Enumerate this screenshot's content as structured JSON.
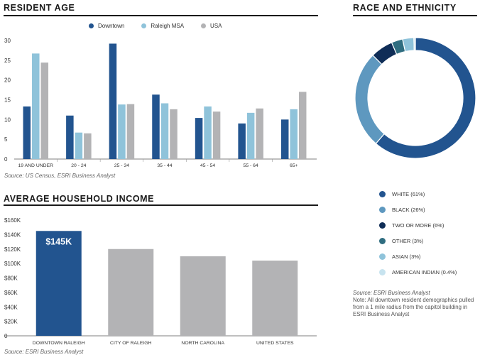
{
  "sections": {
    "resident_age_title": "RESIDENT AGE",
    "race_title": "RACE AND ETHNICITY",
    "income_title": "AVERAGE HOUSEHOLD INCOME"
  },
  "sources": {
    "age": "Source: US Census, ESRI Business Analyst",
    "income": "Source: ESRI Business Analyst",
    "race": "Source: ESRI Business Analyst",
    "race_note": "Note: All downtown resident demographics pulled from a 1 mile radius from the capitol building in ESRI Business Analyst"
  },
  "colors": {
    "downtown": "#22548f",
    "raleigh_msa": "#8fc3da",
    "usa": "#b3b3b5",
    "income_highlight": "#22548f",
    "income_other": "#b3b3b5"
  },
  "chart_data": [
    {
      "type": "bar",
      "title": "RESIDENT AGE",
      "categories": [
        "19 AND UNDER",
        "20 - 24",
        "25 - 34",
        "35 - 44",
        "45 - 54",
        "55 - 64",
        "65+"
      ],
      "series": [
        {
          "name": "Downtown",
          "color": "#22548f",
          "values": [
            13.3,
            11,
            29.2,
            16.3,
            10.4,
            9,
            10
          ]
        },
        {
          "name": "Raleigh MSA",
          "color": "#8fc3da",
          "values": [
            26.7,
            6.7,
            13.8,
            14.1,
            13.3,
            11.7,
            12.6
          ]
        },
        {
          "name": "USA",
          "color": "#b3b3b5",
          "values": [
            24.4,
            6.5,
            13.9,
            12.6,
            12,
            12.8,
            17
          ]
        }
      ],
      "yticks": [
        "0",
        "5",
        "10",
        "15",
        "20",
        "25",
        "30"
      ],
      "ylim": [
        0,
        30
      ],
      "legend_position": "top"
    },
    {
      "type": "pie",
      "title": "RACE AND ETHNICITY",
      "donut": true,
      "slices": [
        {
          "label": "WHITE (61%)",
          "value": 61,
          "color": "#22548f"
        },
        {
          "label": "BLACK (26%)",
          "value": 26,
          "color": "#5e98bf"
        },
        {
          "label": "TWO OR MORE (6%)",
          "value": 6,
          "color": "#0f2d57"
        },
        {
          "label": "OTHER (3%)",
          "value": 3,
          "color": "#2f6d80"
        },
        {
          "label": "ASIAN (3%)",
          "value": 3,
          "color": "#8fc3da"
        },
        {
          "label": "AMERICAN INDIAN (0.4%)",
          "value": 0.4,
          "color": "#c7e3ef"
        }
      ],
      "legend_position": "below"
    },
    {
      "type": "bar",
      "title": "AVERAGE HOUSEHOLD INCOME",
      "categories": [
        "DOWNTOWN RALEIGH",
        "CITY OF RALEIGH",
        "NORTH CAROLINA",
        "UNITED STATES"
      ],
      "values": [
        145,
        120,
        110,
        104
      ],
      "unit": "K",
      "data_labels": [
        "$145K",
        "",
        "",
        ""
      ],
      "yticks": [
        "0",
        "$20K",
        "$40K",
        "$60K",
        "$80K",
        "$100K",
        "$120K",
        "$140K",
        "$160K"
      ],
      "ylim": [
        0,
        160
      ]
    }
  ]
}
